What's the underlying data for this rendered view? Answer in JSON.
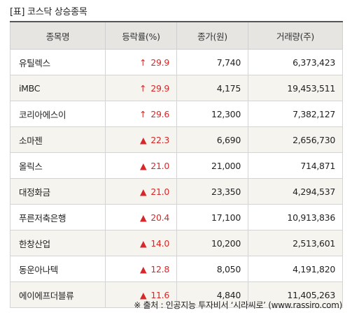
{
  "caption": "[표] 코스닥 상승종목",
  "headers": [
    "종목명",
    "등락률(%)",
    "종가(원)",
    "거래량(주)"
  ],
  "rows": [
    {
      "name": "유틸렉스",
      "arrow": "↑",
      "rate": "29.9",
      "close": "7,740",
      "volume": "6,373,423"
    },
    {
      "name": "iMBC",
      "arrow": "↑",
      "rate": "29.9",
      "close": "4,175",
      "volume": "19,453,511"
    },
    {
      "name": "코리아에스이",
      "arrow": "↑",
      "rate": "29.6",
      "close": "12,300",
      "volume": "7,382,127"
    },
    {
      "name": "소마젠",
      "arrow": "▲",
      "rate": "22.3",
      "close": "6,690",
      "volume": "2,656,730"
    },
    {
      "name": "올릭스",
      "arrow": "▲",
      "rate": "21.0",
      "close": "21,000",
      "volume": "714,871"
    },
    {
      "name": "대정화금",
      "arrow": "▲",
      "rate": "21.0",
      "close": "23,350",
      "volume": "4,294,537"
    },
    {
      "name": "푸른저축은행",
      "arrow": "▲",
      "rate": "20.4",
      "close": "17,100",
      "volume": "10,913,836"
    },
    {
      "name": "한창산업",
      "arrow": "▲",
      "rate": "14.0",
      "close": "10,200",
      "volume": "2,513,601"
    },
    {
      "name": "동운아나텍",
      "arrow": "▲",
      "rate": "12.8",
      "close": "8,050",
      "volume": "4,191,820"
    },
    {
      "name": "에이에프더블류",
      "arrow": "▲",
      "rate": "11.6",
      "close": "4,840",
      "volume": "11,405,263"
    }
  ],
  "footer": "※ 출처 : 인공지능 투자비서 ‘시라씨로’ (www.rassiro.com)",
  "colors": {
    "rise": "#d62828",
    "header_bg": "#e6e5e1",
    "alt_row_bg": "#f5f4ef"
  }
}
